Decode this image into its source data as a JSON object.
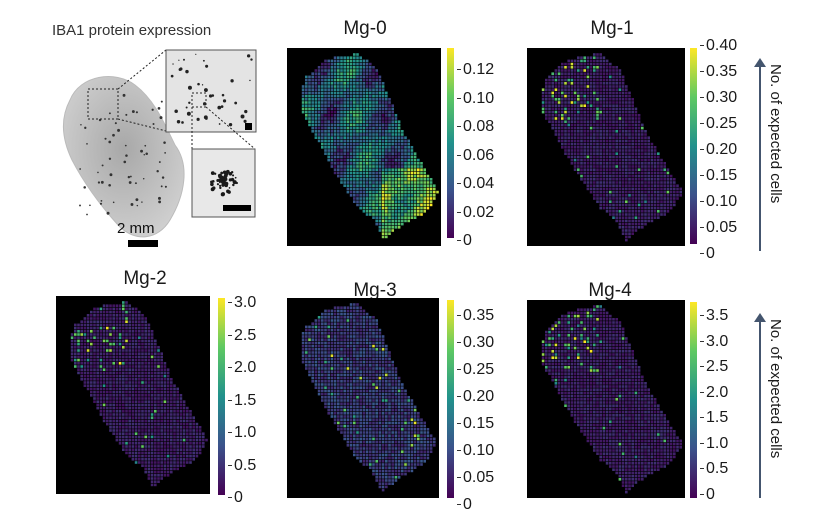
{
  "ihc": {
    "title": "IBA1 protein expression",
    "scalebar_label": "2 mm"
  },
  "colorbar_ylabel": "No. of expected cells",
  "panels": [
    {
      "name": "Mg-0",
      "ticks": [
        "0.12",
        "0.10",
        "0.08",
        "0.06",
        "0.04",
        "0.02",
        "0"
      ],
      "pattern": "broad"
    },
    {
      "name": "Mg-1",
      "ticks": [
        "0.40",
        "0.35",
        "0.30",
        "0.25",
        "0.20",
        "0.15",
        "0.10",
        "0.05",
        "0"
      ],
      "pattern": "sparse"
    },
    {
      "name": "Mg-2",
      "ticks": [
        "3.0",
        "2.5",
        "2.0",
        "1.5",
        "1.0",
        "0.5",
        "0"
      ],
      "pattern": "sparse"
    },
    {
      "name": "Mg-3",
      "ticks": [
        "0.35",
        "0.30",
        "0.25",
        "0.20",
        "0.15",
        "0.10",
        "0.05",
        "0"
      ],
      "pattern": "medium"
    },
    {
      "name": "Mg-4",
      "ticks": [
        "3.5",
        "3.0",
        "2.5",
        "2.0",
        "1.5",
        "1.0",
        "0.5",
        "0"
      ],
      "pattern": "sparse"
    }
  ],
  "colors": {
    "viridis_low": "#440154",
    "viridis_mid": "#21918c",
    "viridis_high": "#fde725"
  }
}
